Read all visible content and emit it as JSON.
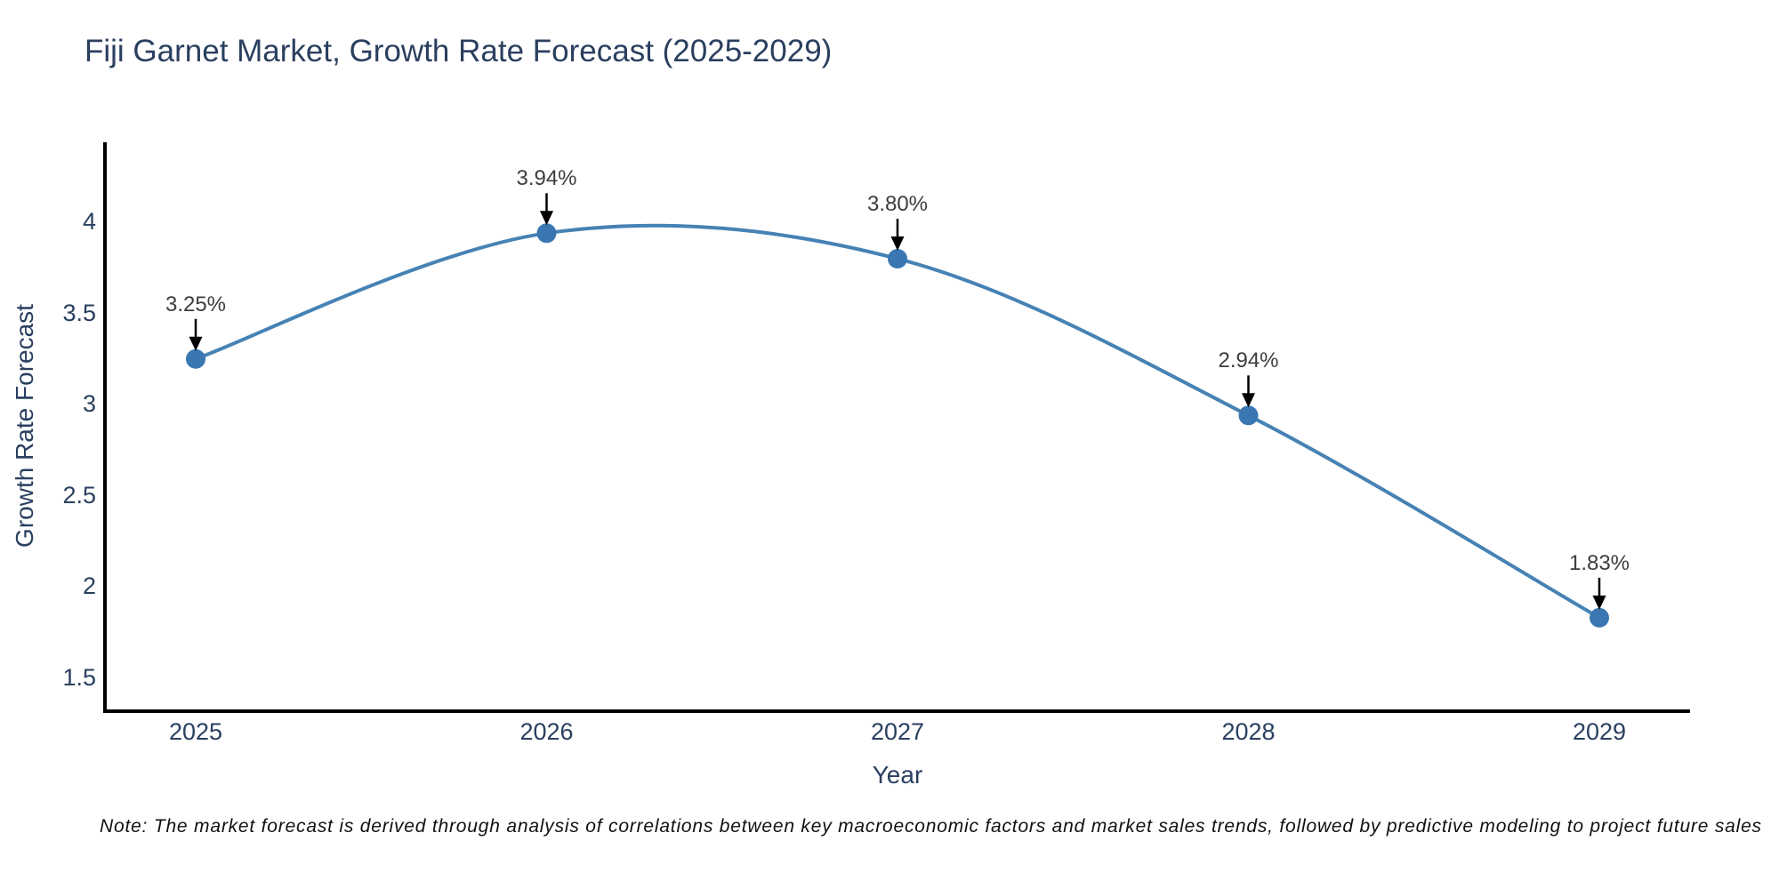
{
  "chart_data": {
    "type": "line",
    "title": "Fiji Garnet Market, Growth Rate Forecast (2025-2029)",
    "xlabel": "Year",
    "ylabel": "Growth Rate Forecast",
    "categories": [
      "2025",
      "2026",
      "2027",
      "2028",
      "2029"
    ],
    "series": [
      {
        "name": "Growth Rate Forecast",
        "values": [
          3.25,
          3.94,
          3.8,
          2.94,
          1.83
        ]
      }
    ],
    "point_labels": [
      "3.25%",
      "3.94%",
      "3.80%",
      "2.94%",
      "1.83%"
    ],
    "ytick_values": [
      4,
      3.5,
      3,
      2.5,
      2,
      1.5
    ],
    "ytick_labels": [
      "4",
      "3.5",
      "3",
      "2.5",
      "2",
      "1.5"
    ],
    "ylim": [
      1.32,
      4.44
    ],
    "grid": false,
    "legend_position": "none",
    "line_shape": "spline",
    "line_color": "#4682b4",
    "marker_color": "#3a77b2",
    "axis_color": "#000000",
    "arrow_color": "#000000",
    "annotation_text_color": "#3d3d3d",
    "title_text_color": "#2a3f5f",
    "note": "Note: The market forecast is derived through analysis of correlations between key macroeconomic factors and market sales trends, followed by predictive modeling to project future sales"
  }
}
